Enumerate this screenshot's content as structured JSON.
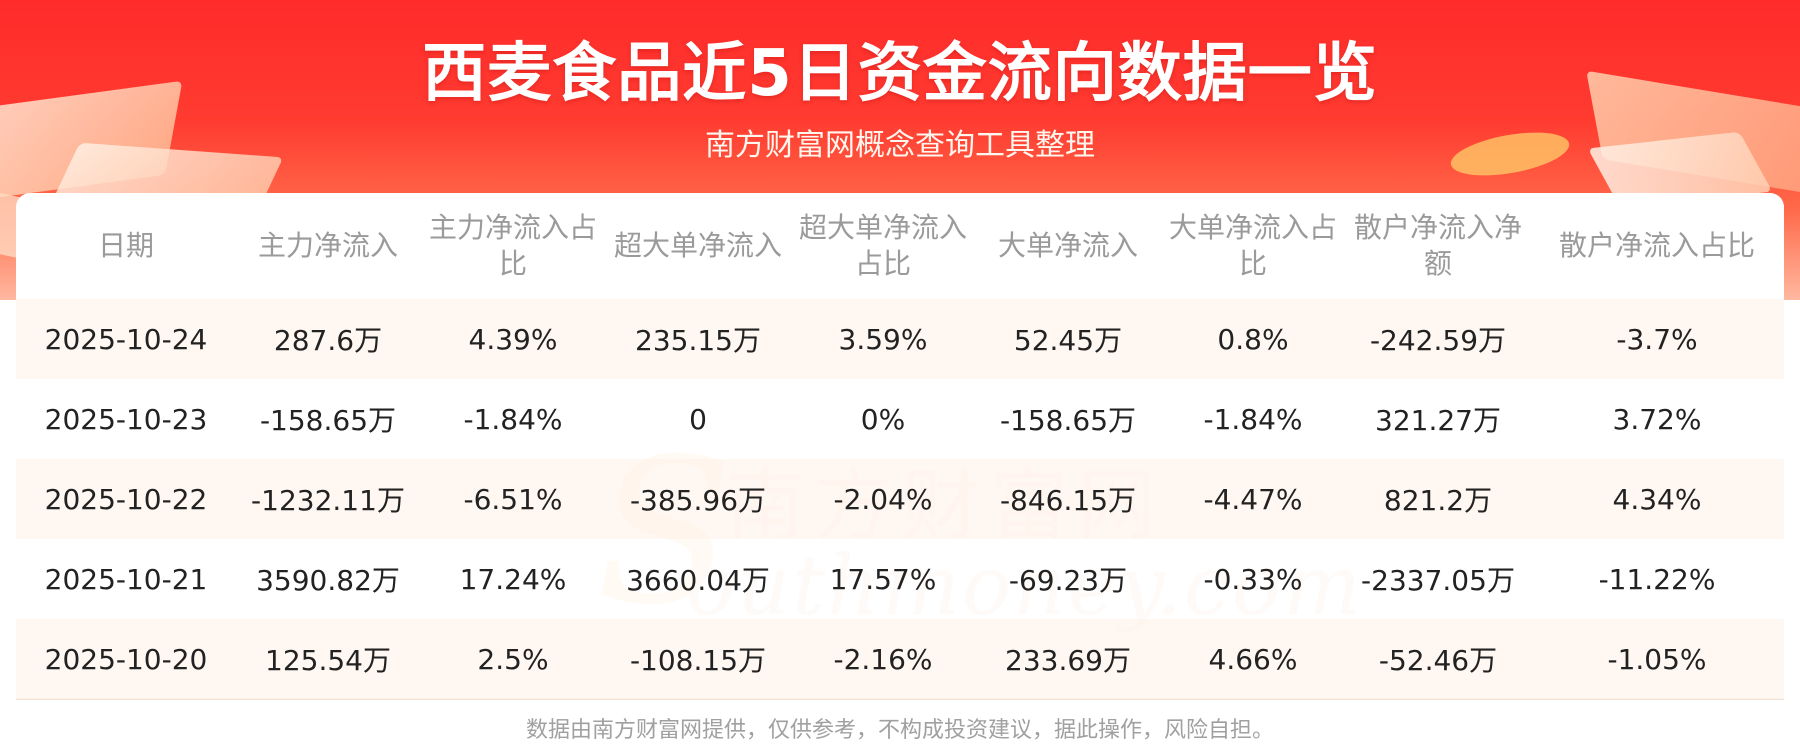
{
  "header": {
    "title": "西麦食品近5日资金流向数据一览",
    "subtitle": "南方财富网概念查询工具整理"
  },
  "watermark": {
    "cn": "南方财富网",
    "en": "outhmoney.com",
    "s": "S"
  },
  "table": {
    "columns": [
      "日期",
      "主力净流入",
      "主力净流入占比",
      "超大单净流入",
      "超大单净流入占比",
      "大单净流入",
      "大单净流入占比",
      "散户净流入净额",
      "散户净流入占比"
    ],
    "rows": [
      [
        "2025-10-24",
        "287.6万",
        "4.39%",
        "235.15万",
        "3.59%",
        "52.45万",
        "0.8%",
        "-242.59万",
        "-3.7%"
      ],
      [
        "2025-10-23",
        "-158.65万",
        "-1.84%",
        "0",
        "0%",
        "-158.65万",
        "-1.84%",
        "321.27万",
        "3.72%"
      ],
      [
        "2025-10-22",
        "-1232.11万",
        "-6.51%",
        "-385.96万",
        "-2.04%",
        "-846.15万",
        "-4.47%",
        "821.2万",
        "4.34%"
      ],
      [
        "2025-10-21",
        "3590.82万",
        "17.24%",
        "3660.04万",
        "17.57%",
        "-69.23万",
        "-0.33%",
        "-2337.05万",
        "-11.22%"
      ],
      [
        "2025-10-20",
        "125.54万",
        "2.5%",
        "-108.15万",
        "-2.16%",
        "233.69万",
        "4.66%",
        "-52.46万",
        "-1.05%"
      ]
    ]
  },
  "footer": {
    "disclaimer": "数据由南方财富网提供，仅供参考，不构成投资建议，据此操作，风险自担。"
  },
  "colors": {
    "header_red": "#ff2b2b",
    "row_stripe": "#fff6ee",
    "header_text": "#9a9a9a",
    "cell_text": "#222222"
  }
}
